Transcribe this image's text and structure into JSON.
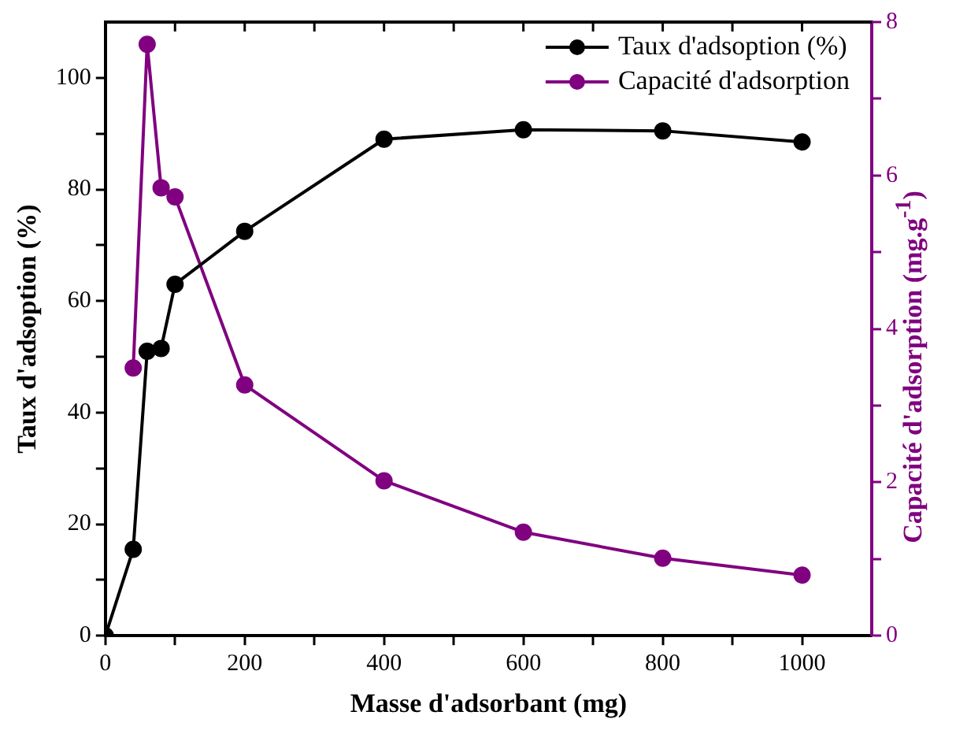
{
  "chart_data": {
    "type": "line",
    "xlabel": "Masse d'adsorbant (mg)",
    "ylabel": "Taux d'adsoption (%)",
    "y2label": "Capacité d'adsorption (mg.g$^{-1}$)",
    "series": [
      {
        "name": "Taux d'adsoption (%)",
        "color": "#000000",
        "x": [
          0,
          40,
          60,
          80,
          100,
          200,
          400,
          600,
          800,
          1000
        ],
        "values": [
          0,
          15.5,
          51,
          51.5,
          63,
          72.5,
          89,
          90.7,
          90.5,
          88.5
        ]
      },
      {
        "name": "Capacité d'adsorption",
        "color": "#800080",
        "axis": "y2",
        "x": [
          40,
          60,
          80,
          100,
          200,
          400,
          600,
          800,
          1000
        ],
        "values": [
          3.49,
          7.71,
          5.84,
          5.72,
          3.27,
          2.02,
          1.35,
          1.01,
          0.79
        ]
      }
    ],
    "xlim": [
      0,
      1100
    ],
    "xticks": [
      0,
      {
        "value": 100,
        "label": null
      },
      200,
      {
        "value": 300,
        "label": null
      },
      400,
      {
        "value": 500,
        "label": null
      },
      600,
      {
        "value": 700,
        "label": null
      },
      800,
      {
        "value": 900,
        "label": null
      },
      1000
    ],
    "ylim": [
      0,
      110
    ],
    "yticks": [
      0,
      {
        "value": 10,
        "label": null
      },
      20,
      {
        "value": 30,
        "label": null
      },
      40,
      {
        "value": 50,
        "label": null
      },
      60,
      {
        "value": 70,
        "label": null
      },
      80,
      {
        "value": 90,
        "label": null
      },
      100
    ],
    "y2lim": [
      0,
      8
    ],
    "y2ticks": [
      0,
      {
        "value": 1,
        "label": null
      },
      2,
      {
        "value": 3,
        "label": null
      },
      4,
      {
        "value": 5,
        "label": null
      },
      6,
      {
        "value": 7,
        "label": null
      },
      8
    ],
    "grid": false,
    "legend": "top right",
    "marker": "circle",
    "line_style": "solid"
  }
}
